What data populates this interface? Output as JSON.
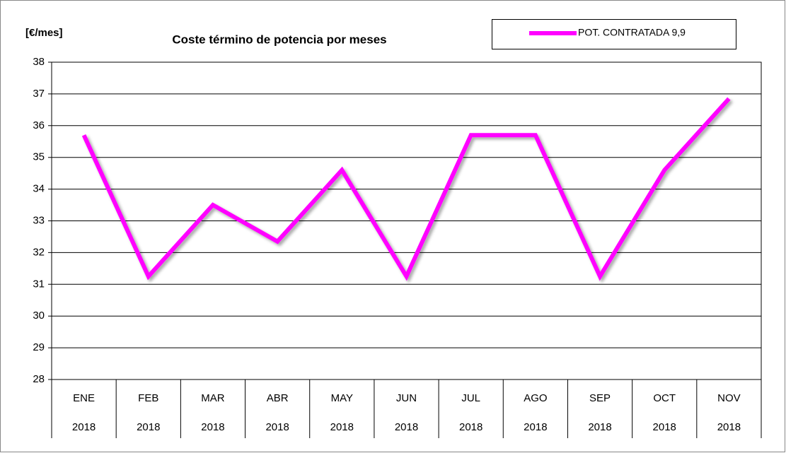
{
  "chart_data": {
    "type": "line",
    "title": "Coste término de potencia por meses",
    "y_label": "[€/mes]",
    "categories": [
      "ENE",
      "FEB",
      "MAR",
      "ABR",
      "MAY",
      "JUN",
      "JUL",
      "AGO",
      "SEP",
      "OCT",
      "NOV"
    ],
    "category_years": [
      "2018",
      "2018",
      "2018",
      "2018",
      "2018",
      "2018",
      "2018",
      "2018",
      "2018",
      "2018",
      "2018"
    ],
    "series": [
      {
        "name": "POT. CONTRATADA 9,9",
        "color": "#ff00ff",
        "values": [
          35.7,
          31.25,
          33.5,
          32.35,
          34.6,
          31.25,
          35.7,
          35.7,
          31.25,
          34.6,
          36.85
        ]
      }
    ],
    "ylim": [
      28,
      38
    ],
    "yticks": [
      28,
      29,
      30,
      31,
      32,
      33,
      34,
      35,
      36,
      37,
      38
    ],
    "grid": true,
    "legend": "top-right"
  }
}
